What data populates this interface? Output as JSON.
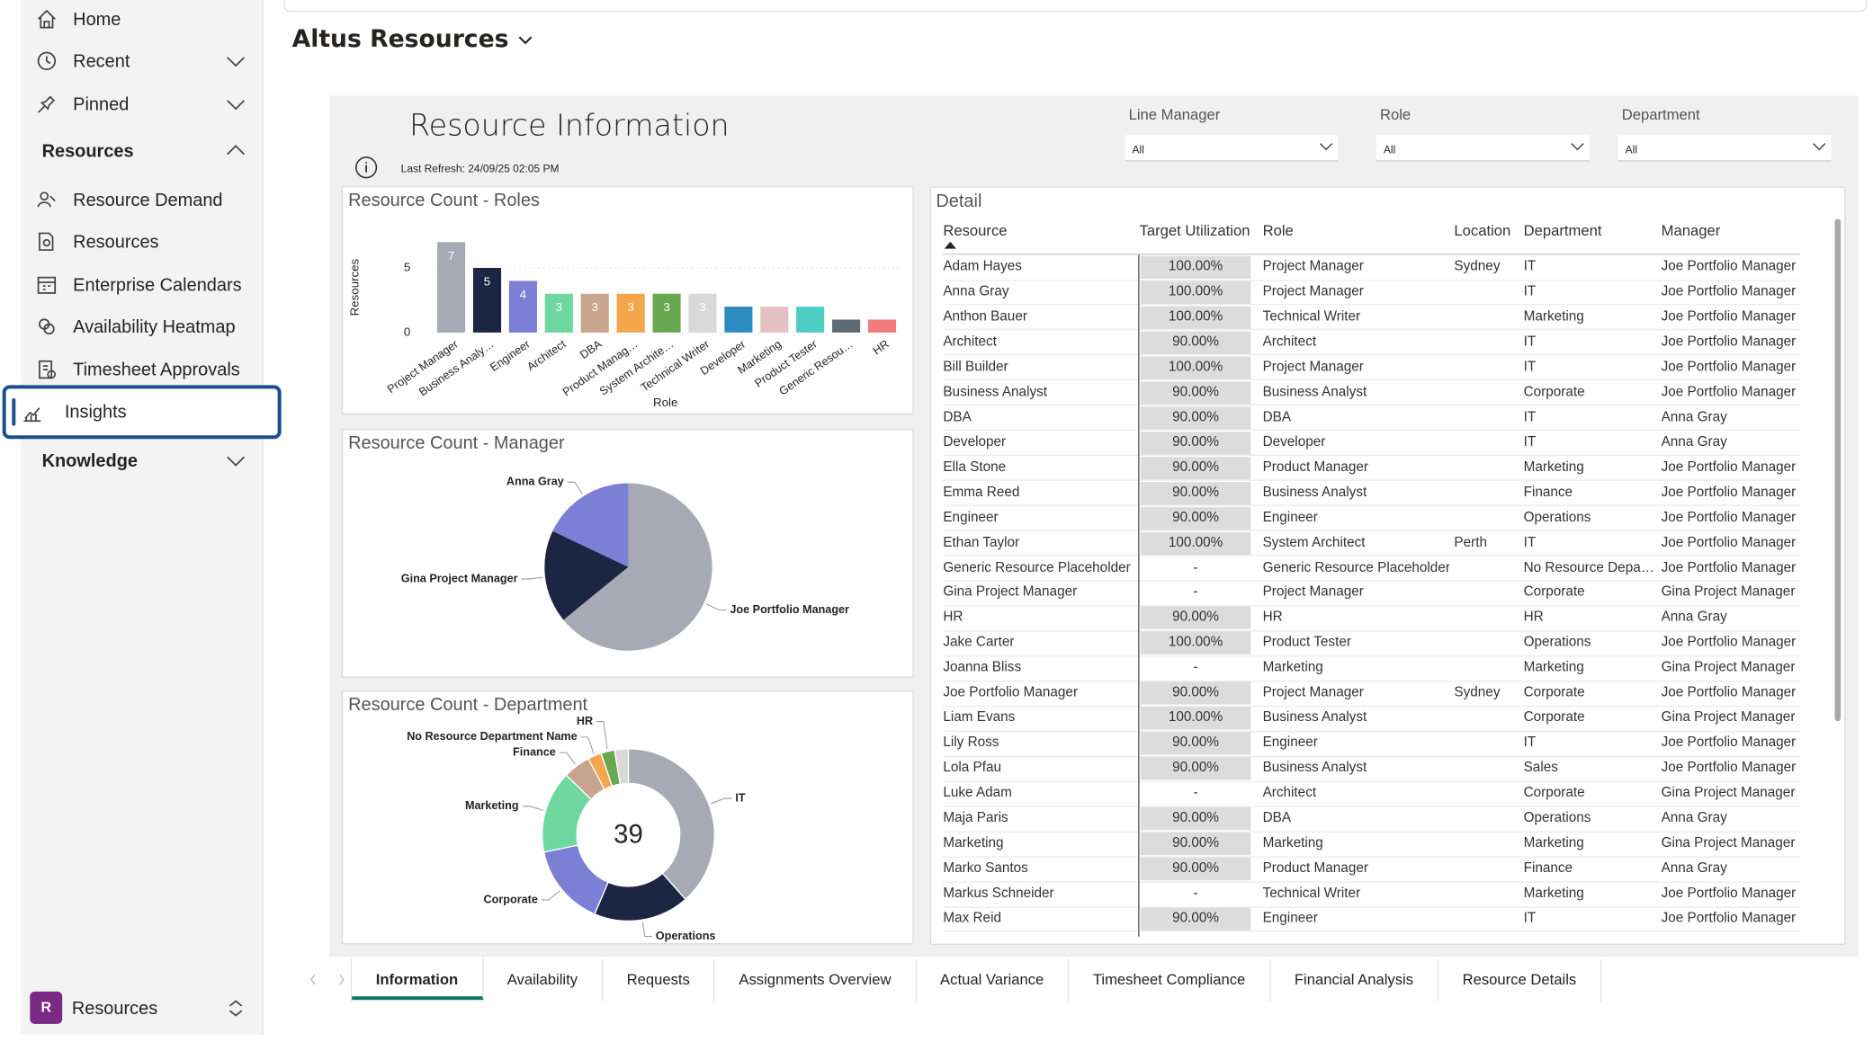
{
  "sidebar": {
    "top": [
      "Home",
      "Recent",
      "Pinned"
    ],
    "groups": [
      {
        "label": "Resources",
        "expanded": true,
        "items": [
          {
            "label": "Resource Demand"
          },
          {
            "label": "Resources"
          },
          {
            "label": "Enterprise Calendars"
          },
          {
            "label": "Availability Heatmap"
          },
          {
            "label": "Timesheet Approvals"
          },
          {
            "label": "Insights",
            "selected": true
          }
        ]
      },
      {
        "label": "Knowledge",
        "expanded": false
      }
    ],
    "footer": {
      "badge": "R",
      "label": "Resources"
    }
  },
  "header": {
    "title": "Altus Resources"
  },
  "report": {
    "title": "Resource Information",
    "last_refresh_label": "Last Refresh:",
    "last_refresh": "24/09/25 02:05 PM",
    "filters": [
      {
        "label": "Line Manager",
        "value": "All"
      },
      {
        "label": "Role",
        "value": "All"
      },
      {
        "label": "Department",
        "value": "All"
      }
    ]
  },
  "chart_data": [
    {
      "type": "bar",
      "title": "Resource Count - Roles",
      "x_label": "Role",
      "y_label": "Resources",
      "categories": [
        "Project Manager",
        "Business Analy…",
        "Engineer",
        "Architect",
        "DBA",
        "Product Manag…",
        "System Archite…",
        "Technical Writer",
        "Developer",
        "Marketing",
        "Product Tester",
        "Generic Resou…",
        "HR"
      ],
      "values": [
        7,
        5,
        4,
        3,
        3,
        3,
        3,
        3,
        2,
        2,
        2,
        1,
        1
      ],
      "value_labels": [
        "7",
        "5",
        "4",
        "3",
        "3",
        "3",
        "3",
        "3",
        null,
        null,
        null,
        null,
        null
      ],
      "colors": [
        "#a7a9b4",
        "#1c2541",
        "#7c7fd6",
        "#6ed8a0",
        "#c9a58e",
        "#f5a54a",
        "#6aa84f",
        "#d9d9d9",
        "#2b8cbf",
        "#e6c1c4",
        "#4ecdc4",
        "#5f6b73",
        "#f27b7b"
      ],
      "ylim": [
        0,
        7
      ],
      "yticks": [
        0,
        5
      ],
      "grid": true
    },
    {
      "type": "pie",
      "title": "Resource Count - Manager",
      "categories": [
        "Joe Portfolio Manager",
        "Gina Project Manager",
        "Anna Gray"
      ],
      "values": [
        25,
        7,
        7
      ],
      "colors": [
        "#a7a9b4",
        "#1c2541",
        "#7c7fd6"
      ]
    },
    {
      "type": "donut",
      "title": "Resource Count - Department",
      "categories": [
        "IT",
        "Operations",
        "Corporate",
        "Marketing",
        "Finance",
        "No Resource Department Name",
        "HR",
        null
      ],
      "values": [
        15,
        7,
        6,
        6,
        2,
        1,
        1,
        1
      ],
      "colors": [
        "#a7a9b4",
        "#1c2541",
        "#7c7fd6",
        "#6ed8a0",
        "#c9a58e",
        "#f5a54a",
        "#6aa84f",
        "#d9d9d9"
      ],
      "center_label": 39
    }
  ],
  "detail": {
    "title": "Detail",
    "columns": [
      "Resource",
      "Target Utilization",
      "Role",
      "Location",
      "Department",
      "Manager"
    ],
    "rows": [
      [
        "Adam Hayes",
        "100.00%",
        "Project Manager",
        "Sydney",
        "IT",
        "Joe Portfolio Manager"
      ],
      [
        "Anna Gray",
        "100.00%",
        "Project Manager",
        null,
        "IT",
        "Joe Portfolio Manager"
      ],
      [
        "Anthon Bauer",
        "100.00%",
        "Technical Writer",
        null,
        "Marketing",
        "Joe Portfolio Manager"
      ],
      [
        "Architect",
        "90.00%",
        "Architect",
        null,
        "IT",
        "Joe Portfolio Manager"
      ],
      [
        "Bill Builder",
        "100.00%",
        "Project Manager",
        null,
        "IT",
        "Joe Portfolio Manager"
      ],
      [
        "Business Analyst",
        "90.00%",
        "Business Analyst",
        null,
        "Corporate",
        "Joe Portfolio Manager"
      ],
      [
        "DBA",
        "90.00%",
        "DBA",
        null,
        "IT",
        "Anna Gray"
      ],
      [
        "Developer",
        "90.00%",
        "Developer",
        null,
        "IT",
        "Anna Gray"
      ],
      [
        "Ella Stone",
        "90.00%",
        "Product Manager",
        null,
        "Marketing",
        "Joe Portfolio Manager"
      ],
      [
        "Emma Reed",
        "90.00%",
        "Business Analyst",
        null,
        "Finance",
        "Joe Portfolio Manager"
      ],
      [
        "Engineer",
        "90.00%",
        "Engineer",
        null,
        "Operations",
        "Joe Portfolio Manager"
      ],
      [
        "Ethan Taylor",
        "100.00%",
        "System Architect",
        "Perth",
        "IT",
        "Joe Portfolio Manager"
      ],
      [
        "Generic Resource Placeholder",
        "-",
        "Generic Resource Placeholder",
        null,
        "No Resource Depa…",
        "Joe Portfolio Manager"
      ],
      [
        "Gina Project Manager",
        "-",
        "Project Manager",
        null,
        "Corporate",
        "Gina Project Manager"
      ],
      [
        "HR",
        "90.00%",
        "HR",
        null,
        "HR",
        "Anna Gray"
      ],
      [
        "Jake Carter",
        "100.00%",
        "Product Tester",
        null,
        "Operations",
        "Joe Portfolio Manager"
      ],
      [
        "Joanna Bliss",
        "-",
        "Marketing",
        null,
        "Marketing",
        "Gina Project Manager"
      ],
      [
        "Joe Portfolio Manager",
        "90.00%",
        "Project Manager",
        "Sydney",
        "Corporate",
        "Joe Portfolio Manager"
      ],
      [
        "Liam Evans",
        "100.00%",
        "Business Analyst",
        null,
        "Corporate",
        "Gina Project Manager"
      ],
      [
        "Lily Ross",
        "90.00%",
        "Engineer",
        null,
        "IT",
        "Joe Portfolio Manager"
      ],
      [
        "Lola Pfau",
        "90.00%",
        "Business Analyst",
        null,
        "Sales",
        "Joe Portfolio Manager"
      ],
      [
        "Luke Adam",
        "-",
        "Architect",
        null,
        "Corporate",
        "Gina Project Manager"
      ],
      [
        "Maja Paris",
        "90.00%",
        "DBA",
        null,
        "Operations",
        "Anna Gray"
      ],
      [
        "Marketing",
        "90.00%",
        "Marketing",
        null,
        "Marketing",
        "Gina Project Manager"
      ],
      [
        "Marko Santos",
        "90.00%",
        "Product Manager",
        null,
        "Finance",
        "Anna Gray"
      ],
      [
        "Markus Schneider",
        "-",
        "Technical Writer",
        null,
        "Marketing",
        "Joe Portfolio Manager"
      ],
      [
        "Max Reid",
        "90.00%",
        "Engineer",
        null,
        "IT",
        "Joe Portfolio Manager"
      ]
    ]
  },
  "tabs": [
    {
      "label": "Information",
      "selected": true
    },
    {
      "label": "Availability"
    },
    {
      "label": "Requests"
    },
    {
      "label": "Assignments Overview"
    },
    {
      "label": "Actual Variance"
    },
    {
      "label": "Timesheet Compliance"
    },
    {
      "label": "Financial Analysis"
    },
    {
      "label": "Resource Details"
    }
  ]
}
